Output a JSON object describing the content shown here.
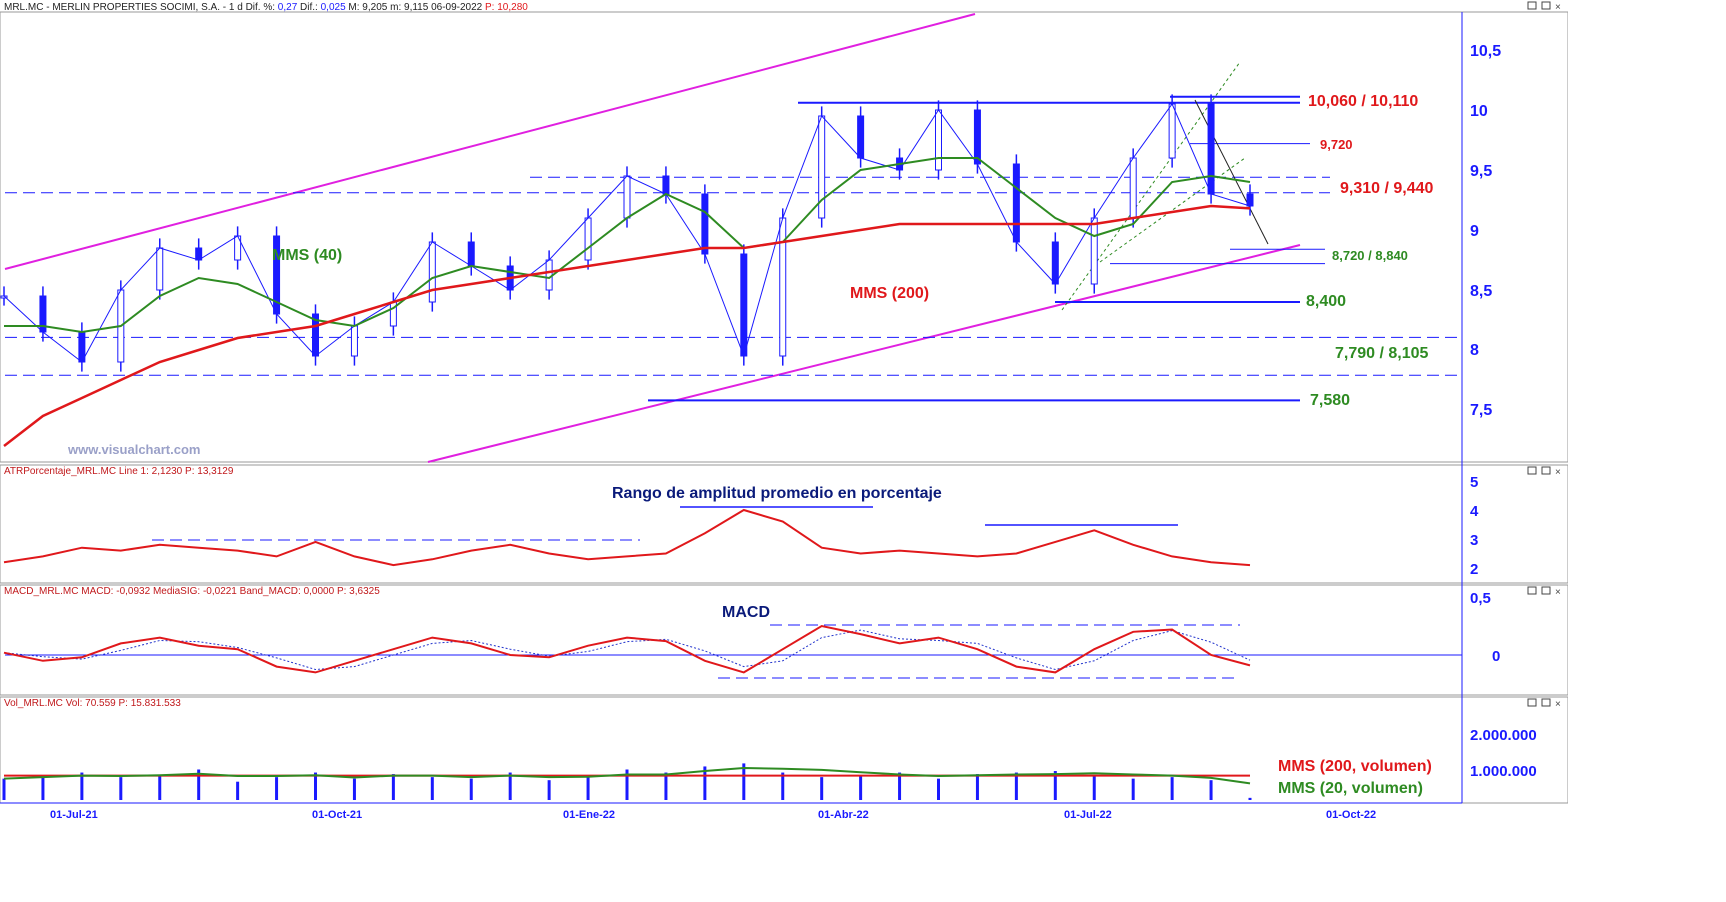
{
  "header": {
    "symbol": "MRL.MC",
    "name": "MERLIN PROPERTIES SOCIMI, S.A.",
    "timeframe": "1 d",
    "dif_pct_label": "Dif. %:",
    "dif_pct_value": "0,27",
    "dif_label": "Dif.:",
    "dif_value": "0,025",
    "max_label": "M: 9,205",
    "min_label": "m: 9,115",
    "date": "06-09-2022",
    "price_label": "P: 10,280"
  },
  "panels": {
    "price": {
      "y_ticks": [
        "10,5",
        "10",
        "9,5",
        "9",
        "8,5",
        "8",
        "7,5"
      ],
      "labels": {
        "mms40": "MMS (40)",
        "mms200": "MMS (200)",
        "watermark": "www.visualchart.com",
        "lvl_10060": "10,060 / 10,110",
        "lvl_9720": "9,720",
        "lvl_9310": "9,310 / 9,440",
        "lvl_8720": "8,720 / 8,840",
        "lvl_8400": "8,400",
        "lvl_7790": "7,790 / 8,105",
        "lvl_7580": "7,580"
      }
    },
    "atr": {
      "header": "ATRPorcentaje_MRL.MC",
      "line_label": "Line 1: 2,1230",
      "p_label": "P: 13,3129",
      "title": "Rango de amplitud promedio en porcentaje",
      "y_ticks": [
        "5",
        "4",
        "3",
        "2"
      ]
    },
    "macd": {
      "header": "MACD_MRL.MC",
      "macd_label": "MACD: -0,0932",
      "signal_label": "MediaSIG: -0,0221",
      "band_label": "Band_MACD: 0,0000",
      "p_label": "P: 3,6325",
      "title": "MACD",
      "y_ticks": [
        "0,5",
        "0"
      ]
    },
    "volume": {
      "header": "Vol_MRL.MC",
      "vol_label": "Vol: 70.559",
      "p_label": "P: 15.831.533",
      "y_ticks": [
        "2.000.000",
        "1.000.000"
      ],
      "legend_200": "MMS (200, volumen)",
      "legend_20": "MMS (20, volumen)"
    }
  },
  "x_axis": [
    "01-Jul-21",
    "01-Oct-21",
    "01-Ene-22",
    "01-Abr-22",
    "01-Jul-22",
    "01-Oct-22"
  ],
  "colors": {
    "candle": "#1a1aff",
    "mms40": "#2e8b22",
    "mms200": "#e0181b",
    "channel": "#e020e0",
    "level_line": "#1a1aff",
    "atr_line": "#e0181b",
    "macd_line": "#e0181b",
    "signal_line": "#2233cc",
    "red_label": "#e0181b",
    "green_label": "#2e8b22",
    "axis_text": "#1a1aff"
  },
  "chart_data": {
    "type": "line",
    "title": "MRL.MC - MERLIN PROPERTIES SOCIMI, S.A. - 1 d",
    "period": [
      "01-Jul-21",
      "06-09-2022"
    ],
    "ylim": [
      7.5,
      10.5
    ],
    "last": {
      "close": 9.205,
      "high": 9.205,
      "low": 9.115,
      "dif": 0.025,
      "dif_pct": 0.27
    },
    "close_series": {
      "x": [
        "01-Jun-21",
        "15-Jun-21",
        "01-Jul-21",
        "15-Jul-21",
        "01-Aug-21",
        "15-Aug-21",
        "01-Sep-21",
        "15-Sep-21",
        "01-Oct-21",
        "15-Oct-21",
        "01-Nov-21",
        "15-Nov-21",
        "01-Dec-21",
        "15-Dec-21",
        "01-Ene-22",
        "15-Ene-22",
        "01-Feb-22",
        "15-Feb-22",
        "01-Mar-22",
        "08-Mar-22",
        "15-Mar-22",
        "01-Abr-22",
        "15-Abr-22",
        "01-May-22",
        "15-May-22",
        "01-Jun-22",
        "15-Jun-22",
        "01-Jul-22",
        "15-Jul-22",
        "01-Aug-22",
        "15-Aug-22",
        "01-Sep-22",
        "06-Sep-22"
      ],
      "values": [
        8.45,
        8.15,
        7.9,
        8.5,
        8.85,
        8.75,
        8.95,
        8.3,
        7.95,
        8.2,
        8.4,
        8.9,
        8.7,
        8.5,
        8.75,
        9.1,
        9.45,
        9.3,
        8.8,
        7.95,
        9.1,
        9.95,
        9.6,
        9.5,
        10.0,
        9.55,
        8.9,
        8.55,
        9.1,
        9.6,
        10.05,
        9.3,
        9.2
      ]
    },
    "series": [
      {
        "name": "MMS (40)",
        "values": [
          8.2,
          8.2,
          8.15,
          8.2,
          8.45,
          8.6,
          8.55,
          8.4,
          8.25,
          8.2,
          8.35,
          8.6,
          8.7,
          8.65,
          8.6,
          8.85,
          9.1,
          9.3,
          9.15,
          8.85,
          8.9,
          9.25,
          9.5,
          9.55,
          9.6,
          9.6,
          9.35,
          9.1,
          8.95,
          9.05,
          9.4,
          9.45,
          9.4
        ]
      },
      {
        "name": "MMS (200)",
        "values": [
          7.2,
          7.45,
          7.6,
          7.75,
          7.9,
          8.0,
          8.1,
          8.15,
          8.2,
          8.3,
          8.4,
          8.5,
          8.55,
          8.6,
          8.65,
          8.7,
          8.75,
          8.8,
          8.85,
          8.85,
          8.9,
          8.95,
          9.0,
          9.05,
          9.05,
          9.05,
          9.05,
          9.05,
          9.05,
          9.1,
          9.15,
          9.2,
          9.18
        ]
      }
    ],
    "levels": [
      10.06,
      10.11,
      9.72,
      9.31,
      9.44,
      8.72,
      8.84,
      8.4,
      7.79,
      8.105,
      7.58
    ],
    "atr_values": [
      2.2,
      2.4,
      2.7,
      2.6,
      2.8,
      2.7,
      2.6,
      2.4,
      2.9,
      2.4,
      2.1,
      2.3,
      2.6,
      2.8,
      2.5,
      2.3,
      2.4,
      2.5,
      3.2,
      4.0,
      3.6,
      2.7,
      2.5,
      2.6,
      2.5,
      2.4,
      2.5,
      2.9,
      3.3,
      2.8,
      2.4,
      2.2,
      2.1
    ],
    "macd_values": [
      0.02,
      -0.05,
      -0.02,
      0.1,
      0.15,
      0.08,
      0.05,
      -0.1,
      -0.15,
      -0.05,
      0.05,
      0.15,
      0.1,
      0.0,
      -0.02,
      0.08,
      0.15,
      0.12,
      -0.05,
      -0.15,
      0.05,
      0.25,
      0.18,
      0.1,
      0.15,
      0.05,
      -0.1,
      -0.15,
      0.05,
      0.2,
      0.22,
      0.0,
      -0.09
    ],
    "volume_values": [
      700000,
      800000,
      900000,
      750000,
      800000,
      1000000,
      600000,
      750000,
      900000,
      700000,
      850000,
      750000,
      700000,
      900000,
      650000,
      800000,
      1000000,
      900000,
      1100000,
      1200000,
      900000,
      750000,
      800000,
      900000,
      700000,
      850000,
      900000,
      950000,
      800000,
      700000,
      750000,
      650000,
      70559
    ]
  }
}
